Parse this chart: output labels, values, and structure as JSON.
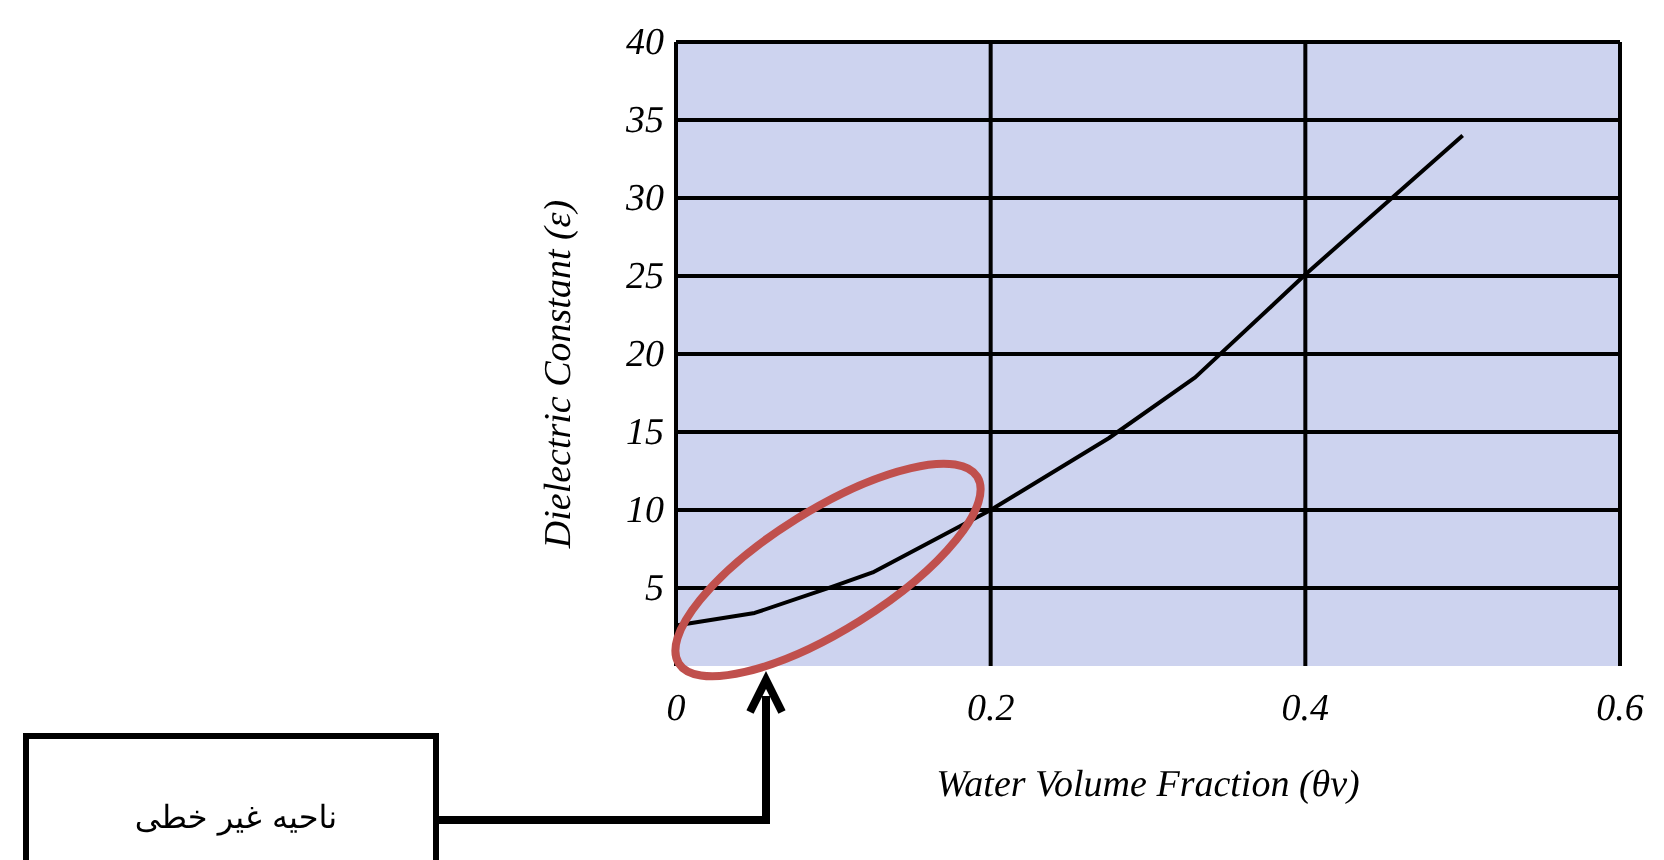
{
  "chart_data": {
    "type": "line",
    "xlabel": "Water Volume Fraction  (θv)",
    "ylabel": "Dielectric Constant  (ε)",
    "x": [
      0,
      0.05,
      0.1,
      0.125,
      0.2,
      0.275,
      0.33,
      0.38,
      0.4,
      0.5
    ],
    "series": [
      {
        "color": "#000000",
        "values": [
          2.6,
          3.4,
          5.1,
          6.0,
          10.0,
          14.6,
          18.5,
          23.2,
          25.1,
          34.0
        ]
      }
    ],
    "xlim": [
      0,
      0.6
    ],
    "xticks": [
      0,
      0.2,
      0.4,
      0.6
    ],
    "ylim": [
      0,
      40
    ],
    "yticks": [
      5,
      10,
      15,
      20,
      25,
      30,
      35,
      40
    ],
    "grid": true,
    "annotations": [
      "ناحیه غیر خطی"
    ]
  }
}
